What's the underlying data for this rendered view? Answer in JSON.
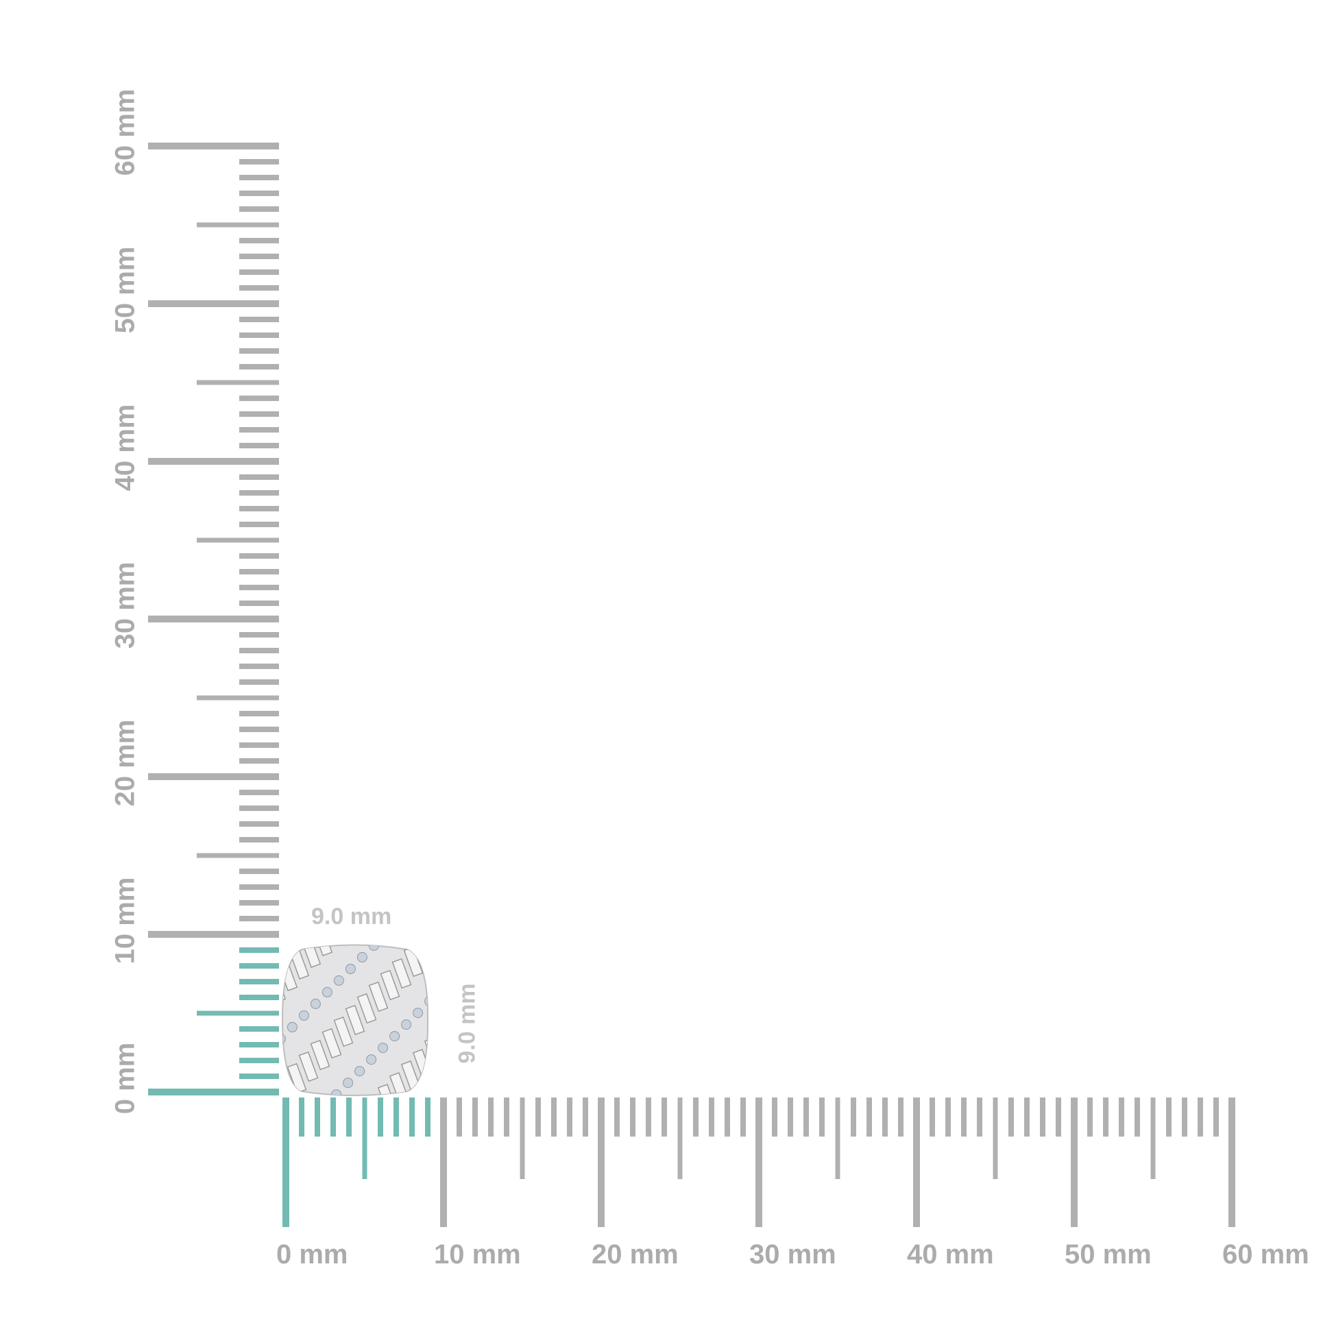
{
  "ruler": {
    "unit": "mm",
    "max_mm": 60,
    "highlight_mm": 9,
    "highlight_color": "#72bab2",
    "tick_color": "#b0b0b0",
    "x_labels": [
      "0 mm",
      "10 mm",
      "20 mm",
      "30 mm",
      "40 mm",
      "50 mm",
      "60 mm"
    ],
    "y_labels": [
      "0 mm",
      "10 mm",
      "20 mm",
      "30 mm",
      "40 mm",
      "50 mm",
      "60 mm"
    ]
  },
  "product": {
    "width_label": "9.0 mm",
    "height_label": "9.0 mm",
    "width_mm": 9.0,
    "height_mm": 9.0
  }
}
